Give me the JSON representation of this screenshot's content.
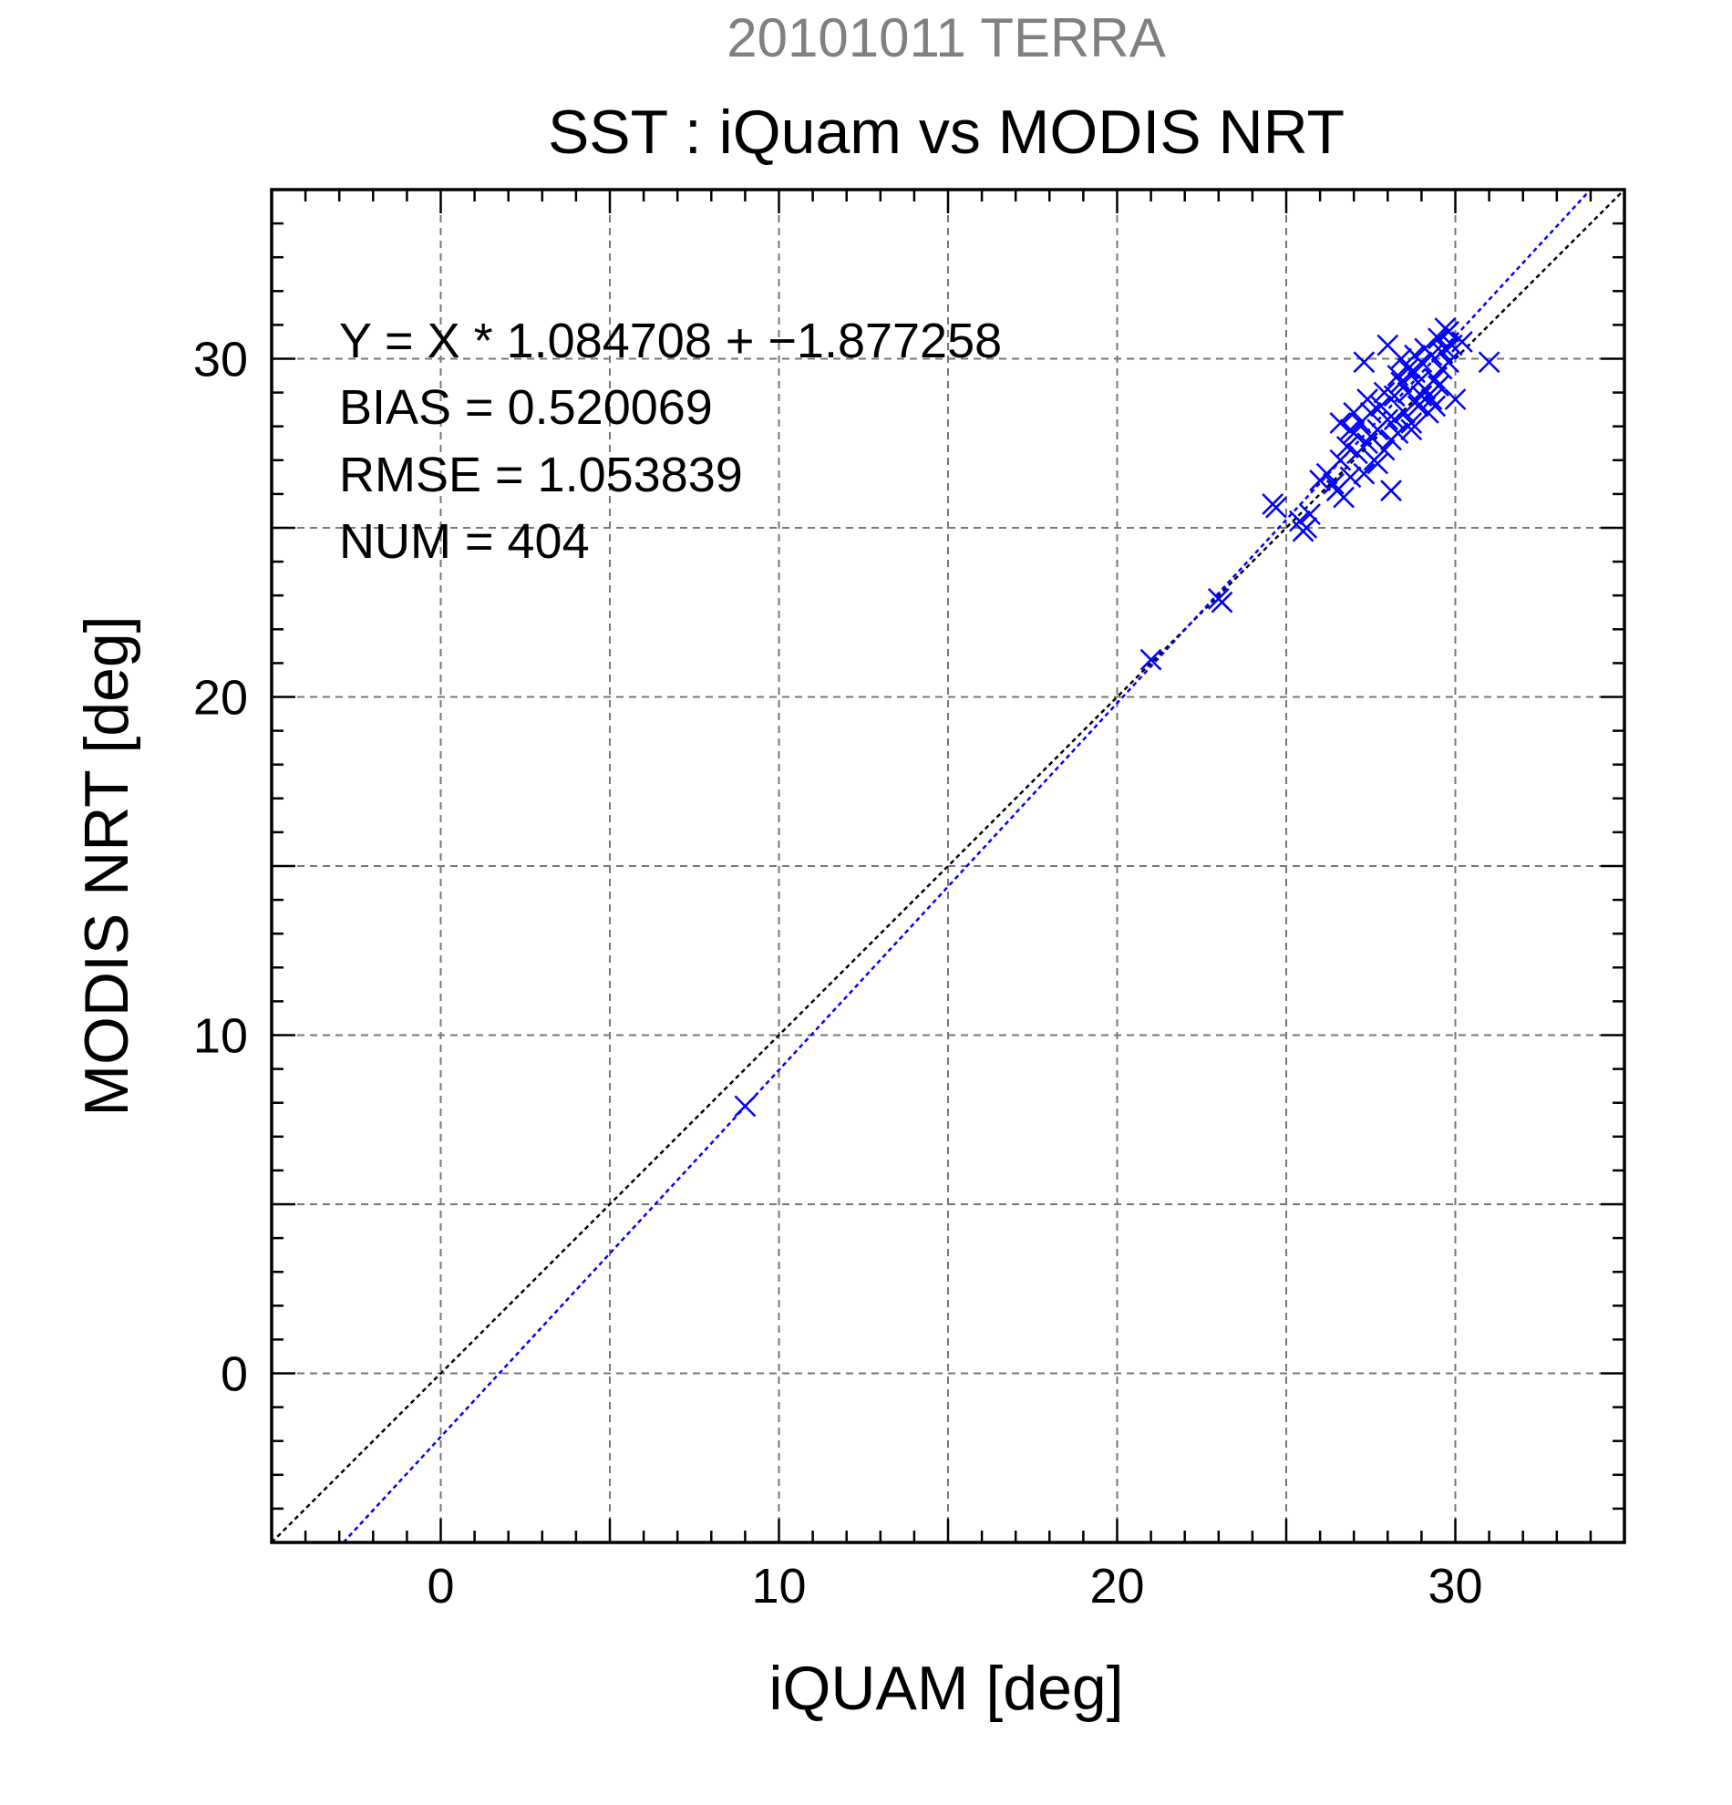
{
  "chart_data": {
    "type": "scatter",
    "supertitle": "20101011 TERRA",
    "title": "SST : iQuam vs MODIS NRT",
    "xlabel": "iQUAM [deg]",
    "ylabel": "MODIS NRT [deg]",
    "xlim": [
      -5,
      35
    ],
    "ylim": [
      -5,
      35
    ],
    "xticks": [
      0,
      10,
      20,
      30
    ],
    "yticks": [
      0,
      10,
      20,
      30
    ],
    "grid": true,
    "annotations": [
      "Y = X * 1.084708 + −1.877258",
      "BIAS = 0.520069",
      "RMSE = 1.053839",
      "NUM = 404"
    ],
    "colors": {
      "points": "#0000ff",
      "fit_line": "#0000ff",
      "identity_line": "#000000",
      "supertitle": "#808080"
    },
    "lines": [
      {
        "kind": "identity",
        "slope": 1,
        "intercept": 0
      },
      {
        "kind": "fit",
        "slope": 1.084708,
        "intercept": -1.877258
      }
    ],
    "points": [
      [
        9.0,
        7.9
      ],
      [
        21.0,
        21.1
      ],
      [
        23.0,
        22.9
      ],
      [
        23.1,
        22.8
      ],
      [
        24.6,
        25.7
      ],
      [
        24.7,
        25.6
      ],
      [
        25.4,
        25.2
      ],
      [
        25.5,
        24.9
      ],
      [
        25.6,
        25.0
      ],
      [
        25.7,
        25.4
      ],
      [
        26.0,
        26.4
      ],
      [
        26.2,
        26.6
      ],
      [
        26.4,
        26.3
      ],
      [
        26.5,
        26.1
      ],
      [
        26.6,
        27.0
      ],
      [
        26.7,
        25.9
      ],
      [
        26.8,
        27.4
      ],
      [
        26.9,
        26.5
      ],
      [
        27.0,
        27.8
      ],
      [
        27.1,
        27.2
      ],
      [
        27.2,
        28.1
      ],
      [
        27.3,
        26.6
      ],
      [
        27.4,
        27.5
      ],
      [
        27.5,
        28.4
      ],
      [
        27.6,
        27.0
      ],
      [
        27.7,
        27.9
      ],
      [
        27.8,
        28.6
      ],
      [
        27.9,
        27.3
      ],
      [
        28.0,
        28.2
      ],
      [
        28.1,
        26.1
      ],
      [
        28.2,
        28.9
      ],
      [
        28.3,
        27.8
      ],
      [
        28.4,
        29.3
      ],
      [
        28.5,
        28.4
      ],
      [
        28.6,
        29.0
      ],
      [
        28.7,
        27.9
      ],
      [
        28.8,
        29.6
      ],
      [
        28.9,
        28.6
      ],
      [
        29.0,
        29.9
      ],
      [
        29.1,
        29.1
      ],
      [
        29.2,
        28.4
      ],
      [
        29.3,
        30.1
      ],
      [
        29.4,
        29.4
      ],
      [
        29.5,
        30.6
      ],
      [
        29.6,
        29.7
      ],
      [
        29.7,
        30.9
      ],
      [
        29.8,
        29.9
      ],
      [
        29.9,
        30.4
      ],
      [
        30.0,
        28.8
      ],
      [
        30.2,
        30.5
      ],
      [
        27.3,
        29.9
      ],
      [
        28.0,
        30.4
      ],
      [
        26.6,
        28.1
      ],
      [
        27.7,
        26.9
      ],
      [
        28.7,
        28.1
      ],
      [
        29.3,
        28.8
      ],
      [
        31.0,
        29.9
      ],
      [
        27.0,
        28.4
      ],
      [
        28.4,
        30.0
      ],
      [
        29.6,
        30.2
      ],
      [
        28.9,
        29.3
      ],
      [
        29.1,
        30.3
      ],
      [
        28.2,
        28.2
      ],
      [
        27.5,
        27.7
      ],
      [
        29.8,
        30.8
      ],
      [
        28.6,
        29.7
      ],
      [
        29.4,
        28.6
      ],
      [
        28.1,
        27.6
      ],
      [
        26.9,
        27.9
      ],
      [
        27.9,
        29.0
      ],
      [
        29.0,
        28.9
      ],
      [
        29.5,
        29.2
      ],
      [
        28.3,
        29.5
      ],
      [
        27.4,
        28.8
      ],
      [
        29.7,
        30.3
      ],
      [
        28.8,
        30.1
      ]
    ]
  }
}
